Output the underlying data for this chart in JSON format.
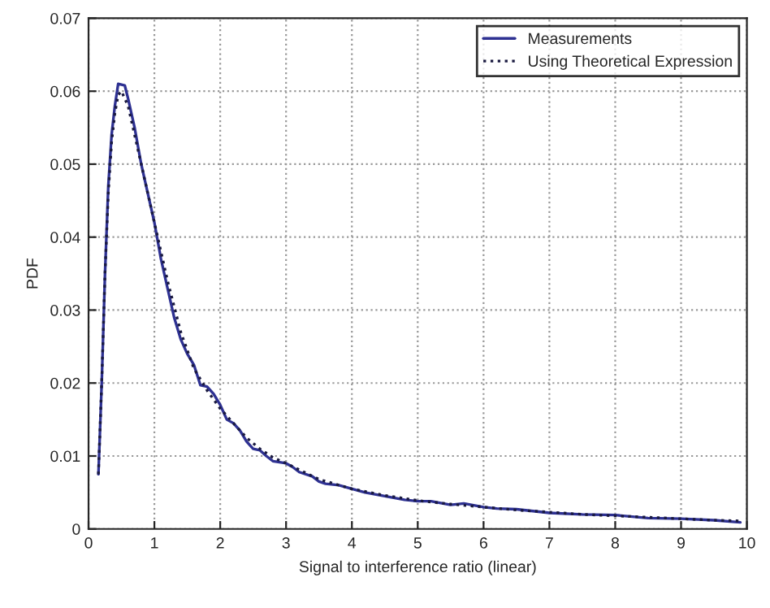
{
  "chart_data": {
    "type": "line",
    "xlabel": "Signal to interference ratio (linear)",
    "ylabel": "PDF",
    "xlim": [
      0,
      10
    ],
    "ylim": [
      0,
      0.07
    ],
    "xticks": [
      0,
      1,
      2,
      3,
      4,
      5,
      6,
      7,
      8,
      9,
      10
    ],
    "yticks": [
      0,
      0.01,
      0.02,
      0.03,
      0.04,
      0.05,
      0.06,
      0.07
    ],
    "grid": true,
    "legend": "top right",
    "series": [
      {
        "name": "Measurements",
        "color": "#2e3192",
        "line_style": "solid",
        "x": [
          0.15,
          0.2,
          0.25,
          0.3,
          0.35,
          0.4,
          0.45,
          0.55,
          0.6,
          0.7,
          0.8,
          0.9,
          1.0,
          1.1,
          1.2,
          1.3,
          1.4,
          1.5,
          1.6,
          1.7,
          1.8,
          1.9,
          2.0,
          2.1,
          2.2,
          2.3,
          2.4,
          2.5,
          2.6,
          2.7,
          2.8,
          3.0,
          3.1,
          3.2,
          3.4,
          3.5,
          3.6,
          3.8,
          4.0,
          4.2,
          4.5,
          4.8,
          5.0,
          5.2,
          5.5,
          5.7,
          6.0,
          6.2,
          6.5,
          7.0,
          7.5,
          8.0,
          8.5,
          9.0,
          9.5,
          9.9
        ],
        "values": [
          0.0075,
          0.02,
          0.035,
          0.047,
          0.054,
          0.058,
          0.061,
          0.0608,
          0.059,
          0.055,
          0.05,
          0.046,
          0.042,
          0.037,
          0.033,
          0.029,
          0.026,
          0.024,
          0.0225,
          0.0197,
          0.0195,
          0.0185,
          0.017,
          0.015,
          0.0145,
          0.0135,
          0.012,
          0.011,
          0.0108,
          0.01,
          0.0093,
          0.009,
          0.0085,
          0.0078,
          0.0072,
          0.0065,
          0.0062,
          0.006,
          0.0055,
          0.005,
          0.0045,
          0.004,
          0.0038,
          0.0038,
          0.0033,
          0.0035,
          0.003,
          0.0028,
          0.0027,
          0.0022,
          0.002,
          0.0019,
          0.0015,
          0.0014,
          0.0012,
          0.0009
        ]
      },
      {
        "name": "Using Theoretical Expression",
        "color": "#1a1a40",
        "line_style": "dotted",
        "x": [
          0.15,
          0.2,
          0.25,
          0.3,
          0.35,
          0.4,
          0.45,
          0.5,
          0.6,
          0.7,
          0.8,
          0.9,
          1.0,
          1.2,
          1.4,
          1.6,
          1.8,
          2.0,
          2.2,
          2.4,
          2.6,
          2.8,
          3.0,
          3.5,
          4.0,
          4.5,
          5.0,
          5.5,
          6.0,
          6.5,
          7.0,
          7.5,
          8.0,
          8.5,
          9.0,
          9.5,
          9.9
        ],
        "values": [
          0.0075,
          0.02,
          0.035,
          0.046,
          0.053,
          0.057,
          0.0595,
          0.06,
          0.058,
          0.054,
          0.05,
          0.046,
          0.042,
          0.034,
          0.027,
          0.022,
          0.019,
          0.0165,
          0.0145,
          0.0125,
          0.011,
          0.0098,
          0.009,
          0.0068,
          0.0055,
          0.0046,
          0.0039,
          0.0034,
          0.003,
          0.0026,
          0.0023,
          0.002,
          0.0018,
          0.0016,
          0.0014,
          0.0012,
          0.0011
        ]
      }
    ]
  }
}
